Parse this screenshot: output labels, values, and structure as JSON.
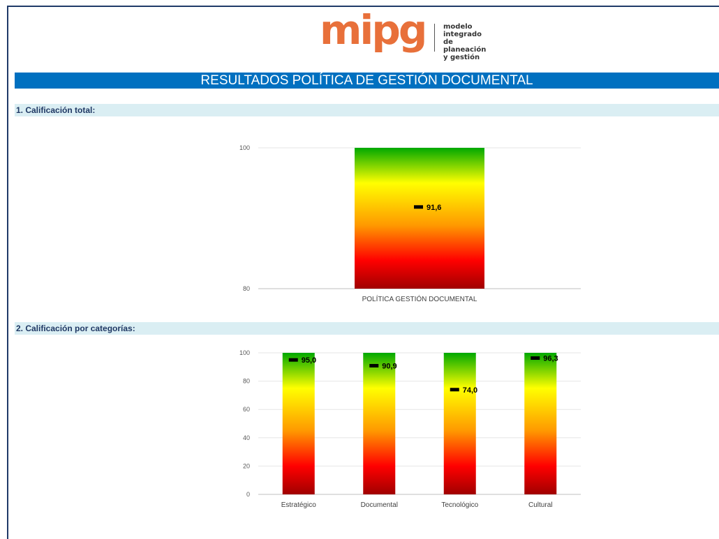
{
  "logo": {
    "wordmark": "mipg",
    "tagline": "modelo integrado\nde planeación\ny gestión",
    "color": "#e8703a"
  },
  "banner": {
    "title": "RESULTADOS POLÍTICA DE GESTIÓN DOCUMENTAL",
    "background": "#0070c0"
  },
  "sections": {
    "total": "1. Calificación total:",
    "categories": "2. Calificación por categorías:",
    "background": "#daeef3",
    "text_color": "#1f3864"
  },
  "gradient_colors": {
    "top": "#00a800",
    "upper": "#ffff00",
    "middle": "#ff9900",
    "lower": "#ff0000",
    "bottom": "#a00000"
  },
  "chart_data": [
    {
      "type": "bar",
      "categories": [
        "POLÍTICA GESTIÓN DOCUMENTAL"
      ],
      "values": [
        91.6
      ],
      "value_labels": [
        "91,6"
      ],
      "ylim": [
        80,
        100
      ],
      "yticks": [
        80,
        100
      ],
      "grid": true,
      "note": "bar spans full axis range as a color gauge; black marker shows the score"
    },
    {
      "type": "bar",
      "categories": [
        "Estratégico",
        "Documental",
        "Tecnológico",
        "Cultural"
      ],
      "values": [
        95.0,
        90.9,
        74.0,
        96.3
      ],
      "value_labels": [
        "95,0",
        "90,9",
        "74,0",
        "96,3"
      ],
      "ylim": [
        0,
        100
      ],
      "yticks": [
        0,
        20,
        40,
        60,
        80,
        100
      ],
      "grid": true,
      "note": "each bar spans full axis range as a color gauge; black marker shows the score"
    }
  ]
}
